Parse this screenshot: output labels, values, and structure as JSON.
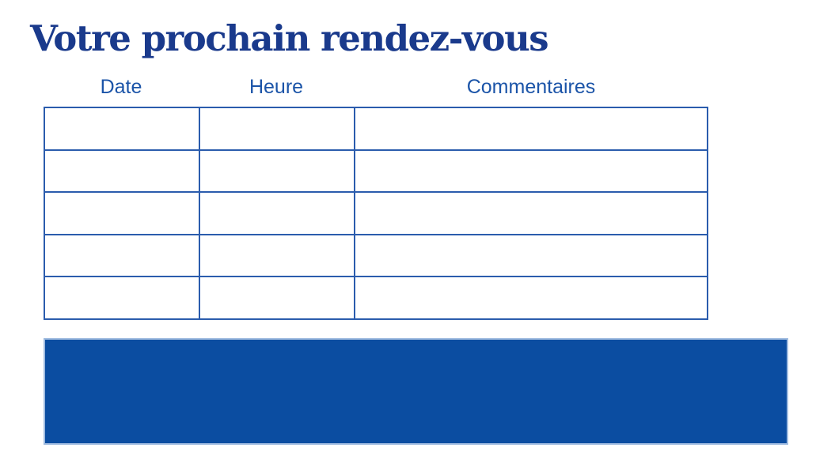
{
  "title": "Votre prochain rendez-vous",
  "table": {
    "columns": [
      "Date",
      "Heure",
      "Commentaires"
    ],
    "rows": [
      [
        "",
        "",
        ""
      ],
      [
        "",
        "",
        ""
      ],
      [
        "",
        "",
        ""
      ],
      [
        "",
        "",
        ""
      ],
      [
        "",
        "",
        ""
      ]
    ]
  },
  "footer_block": {
    "label": "highlight-rectangle",
    "text": ""
  },
  "colors": {
    "title_color": "#1a3a8c",
    "header_text_color": "#1b54a8",
    "table_border_color": "#2b5cad",
    "rect_fill_color": "#0b4da1",
    "rect_border_color": "#9fbbe0",
    "background_color": "#ffffff"
  }
}
